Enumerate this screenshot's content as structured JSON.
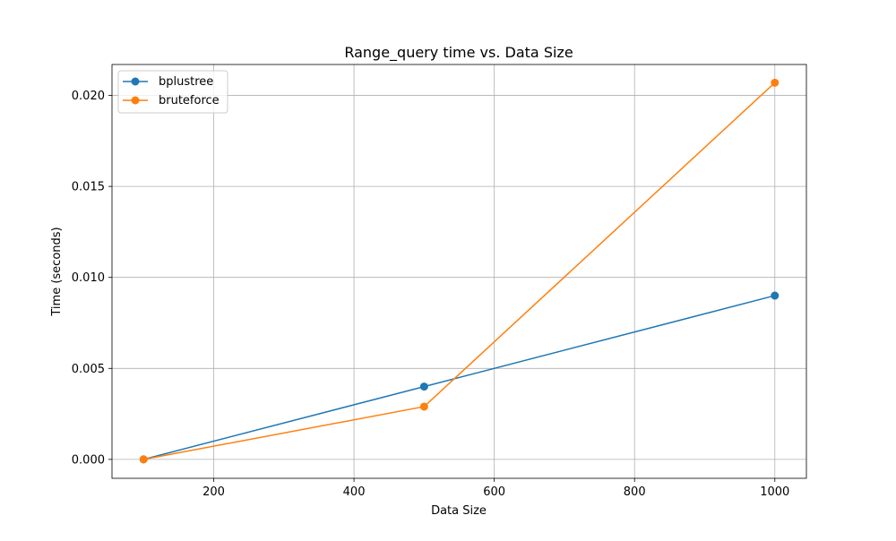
{
  "chart_data": {
    "type": "line",
    "title": "Range_query time vs. Data Size",
    "xlabel": "Data Size",
    "ylabel": "Time (seconds)",
    "x": [
      100,
      500,
      1000
    ],
    "xlim": [
      55,
      1045
    ],
    "ylim": [
      -0.00104,
      0.0217
    ],
    "xticks": [
      200,
      400,
      600,
      800,
      1000
    ],
    "yticks": [
      0.0,
      0.005,
      0.01,
      0.015,
      0.02
    ],
    "xtick_labels": [
      "200",
      "400",
      "600",
      "800",
      "1000"
    ],
    "ytick_labels": [
      "0.000",
      "0.005",
      "0.010",
      "0.015",
      "0.020"
    ],
    "grid": true,
    "legend_position": "top-left",
    "marker": "circle",
    "series": [
      {
        "name": "bplustree",
        "color": "#1f77b4",
        "values": [
          0.0,
          0.004,
          0.009
        ]
      },
      {
        "name": "bruteforce",
        "color": "#ff7f0e",
        "values": [
          0.0,
          0.0029,
          0.0207
        ]
      }
    ]
  }
}
